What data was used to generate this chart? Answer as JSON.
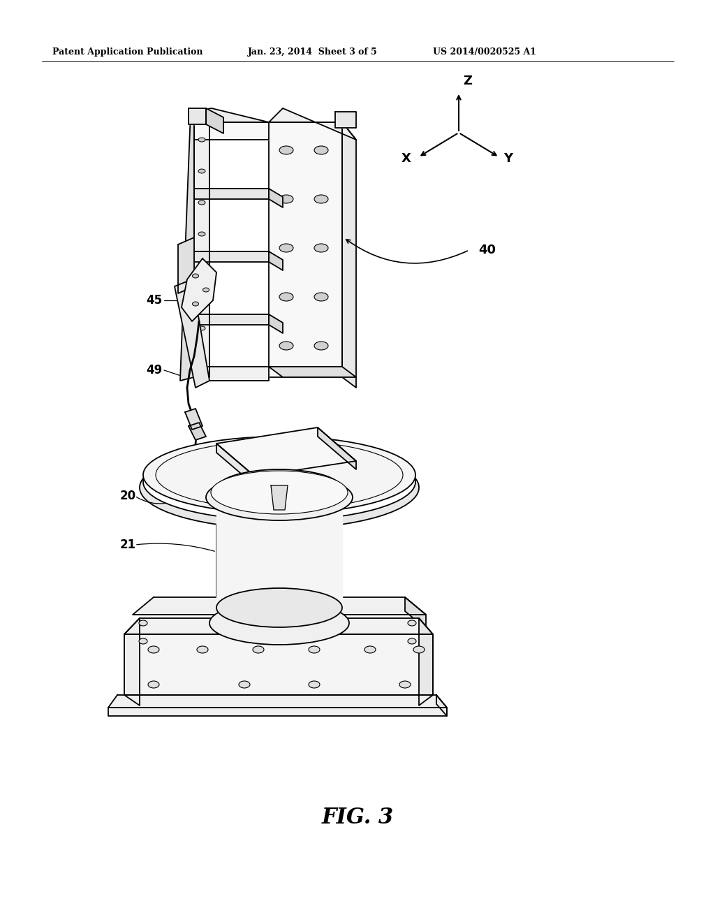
{
  "bg_color": "#ffffff",
  "header_left": "Patent Application Publication",
  "header_mid": "Jan. 23, 2014  Sheet 3 of 5",
  "header_right": "US 2014/0020525 A1",
  "footer_label": "FIG. 3",
  "label_40": "40",
  "label_45": "45",
  "label_49": "49",
  "label_20": "20",
  "label_21": "21",
  "axis_x": "X",
  "axis_y": "Y",
  "axis_z": "Z",
  "lc": "#000000",
  "lw_main": 1.3,
  "lw_thin": 0.7,
  "fill_white": "#ffffff",
  "fill_light": "#f0f0f0",
  "fill_med": "#e0e0e0",
  "fill_dark": "#c8c8c8",
  "fill_darker": "#b0b0b0"
}
